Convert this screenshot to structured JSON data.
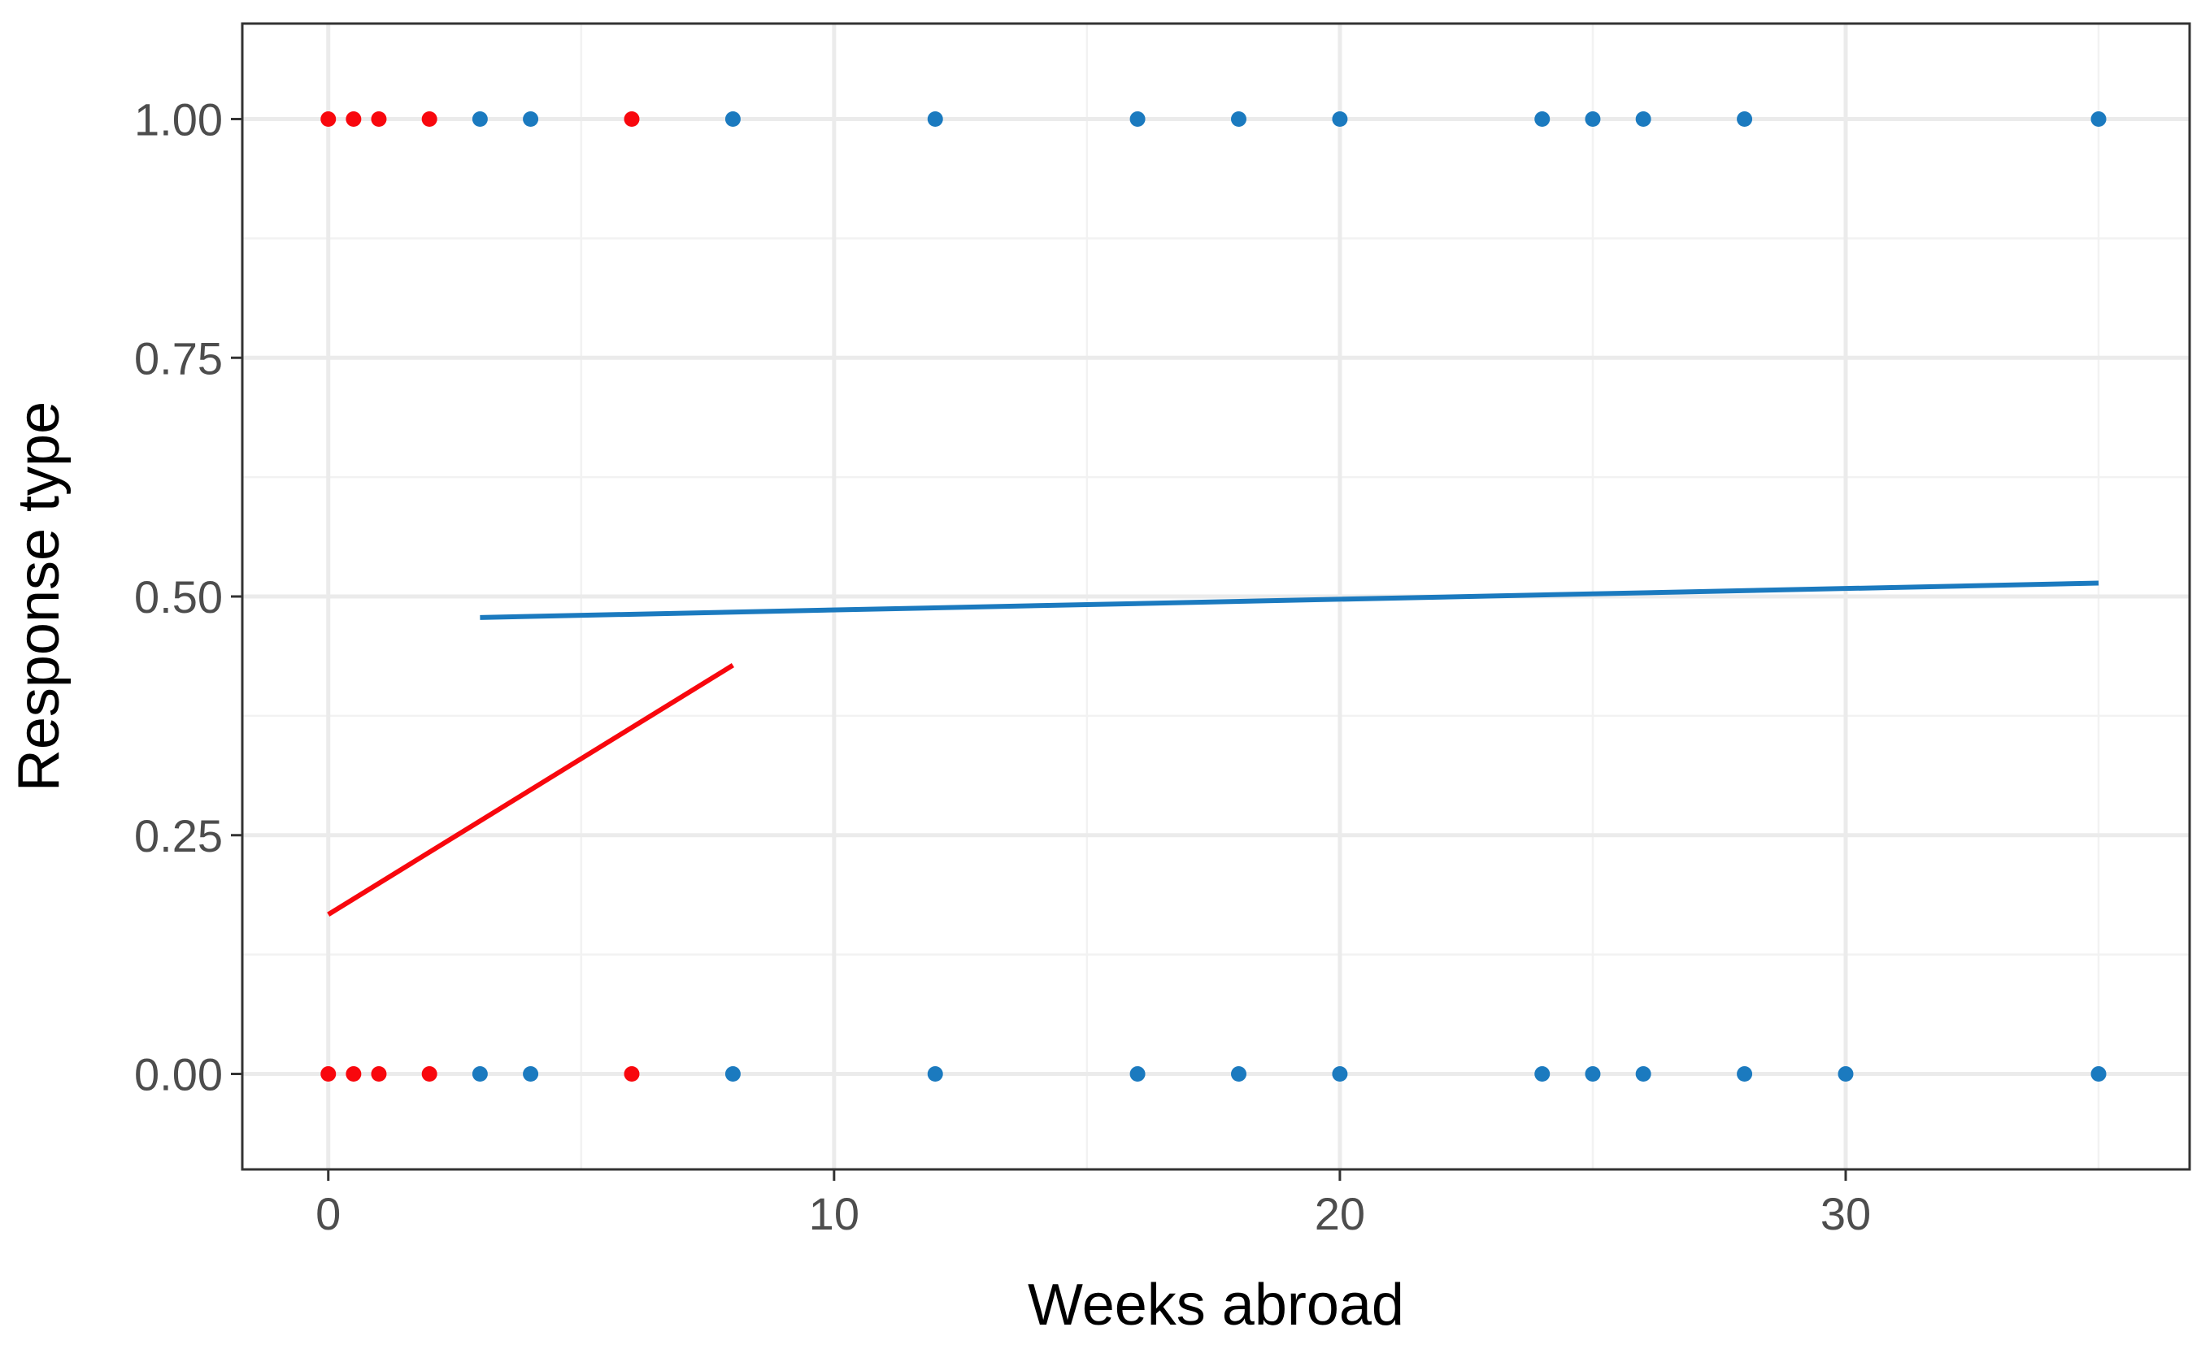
{
  "chart_data": {
    "type": "scatter",
    "title": "",
    "xlabel": "Weeks abroad",
    "ylabel": "Response type",
    "xlim": [
      -1.7,
      36.8
    ],
    "ylim": [
      -0.1,
      1.1
    ],
    "x_ticks": [
      0,
      10,
      20,
      30
    ],
    "x_tick_labels": [
      "0",
      "10",
      "20",
      "30"
    ],
    "x_minor_ticks": [
      5,
      15,
      25,
      35
    ],
    "y_ticks": [
      0,
      0.25,
      0.5,
      0.75,
      1
    ],
    "y_tick_labels": [
      "0.00",
      "0.25",
      "0.50",
      "0.75",
      "1.00"
    ],
    "y_minor_ticks": [
      0.125,
      0.375,
      0.625,
      0.875
    ],
    "grid": true,
    "legend": "none",
    "colors": {
      "red_group": "#f8070d",
      "blue_group": "#1b7abf",
      "panel_border": "#333333",
      "grid_major": "#ebebeb",
      "grid_minor": "#f2f2f2"
    },
    "series": [
      {
        "color": "#f8070d",
        "points": [
          [
            0,
            1
          ],
          [
            0.5,
            1
          ],
          [
            1,
            1
          ],
          [
            2,
            1
          ],
          [
            6,
            1
          ],
          [
            0,
            0
          ],
          [
            0.5,
            0
          ],
          [
            1,
            0
          ],
          [
            2,
            0
          ],
          [
            6,
            0
          ]
        ],
        "fit_line": [
          [
            0,
            0.167
          ],
          [
            8,
            0.428
          ]
        ]
      },
      {
        "color": "#1b7abf",
        "points": [
          [
            3,
            1
          ],
          [
            4,
            1
          ],
          [
            8,
            1
          ],
          [
            12,
            1
          ],
          [
            16,
            1
          ],
          [
            18,
            1
          ],
          [
            20,
            1
          ],
          [
            24,
            1
          ],
          [
            25,
            1
          ],
          [
            26,
            1
          ],
          [
            28,
            1
          ],
          [
            35,
            1
          ],
          [
            3,
            0
          ],
          [
            4,
            0
          ],
          [
            8,
            0
          ],
          [
            12,
            0
          ],
          [
            16,
            0
          ],
          [
            18,
            0
          ],
          [
            20,
            0
          ],
          [
            24,
            0
          ],
          [
            25,
            0
          ],
          [
            26,
            0
          ],
          [
            28,
            0
          ],
          [
            30,
            0
          ],
          [
            35,
            0
          ]
        ],
        "fit_line": [
          [
            3,
            0.478
          ],
          [
            35,
            0.514
          ]
        ]
      }
    ]
  }
}
